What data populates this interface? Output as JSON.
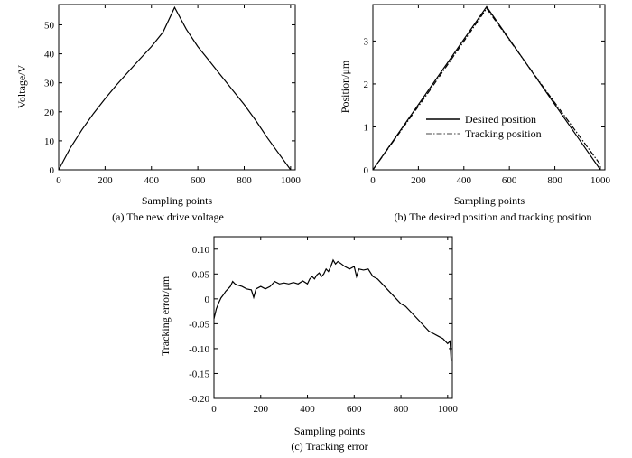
{
  "figure": {
    "panels": [
      {
        "caption": "(a) The new drive voltage"
      },
      {
        "caption": "(b) The desired position and tracking position"
      },
      {
        "caption": "(c) Tracking error"
      }
    ]
  },
  "chart_data": [
    {
      "type": "line",
      "xlabel": "Sampling points",
      "ylabel": "Voltage/V",
      "xlim": [
        0,
        1020
      ],
      "ylim": [
        0,
        57
      ],
      "xticks": [
        0,
        200,
        400,
        600,
        800,
        1000
      ],
      "yticks": [
        0,
        10,
        20,
        30,
        40,
        50
      ],
      "grid": false,
      "series": [
        {
          "style": "solid",
          "x": [
            0,
            50,
            100,
            150,
            200,
            250,
            300,
            350,
            400,
            450,
            500,
            550,
            600,
            650,
            700,
            750,
            800,
            850,
            900,
            950,
            1000
          ],
          "y": [
            0,
            7.5,
            13.8,
            19.4,
            24.5,
            29.3,
            33.8,
            38.2,
            42.5,
            47.5,
            56,
            48.5,
            42.5,
            37.5,
            32.5,
            27.5,
            22.5,
            17,
            11,
            5.5,
            0
          ]
        }
      ]
    },
    {
      "type": "line",
      "xlabel": "Sampling points",
      "ylabel": "Position/μm",
      "xlim": [
        0,
        1020
      ],
      "ylim": [
        0,
        3.85
      ],
      "xticks": [
        0,
        200,
        400,
        600,
        800,
        1000
      ],
      "yticks": [
        0,
        1,
        2,
        3
      ],
      "grid": false,
      "legend_position": "center-right",
      "series": [
        {
          "name": "Desired position",
          "style": "solid",
          "x": [
            0,
            500,
            1000
          ],
          "y": [
            0,
            3.8,
            0
          ]
        },
        {
          "name": "Tracking position",
          "style": "dashdot",
          "x": [
            0,
            250,
            500,
            750,
            1000
          ],
          "y": [
            0,
            1.85,
            3.76,
            1.92,
            0.12
          ]
        }
      ]
    },
    {
      "type": "line",
      "xlabel": "Sampling points",
      "ylabel": "Tracking error/μm",
      "xlim": [
        0,
        1020
      ],
      "ylim": [
        -0.2,
        0.125
      ],
      "xticks": [
        0,
        200,
        400,
        600,
        800,
        1000
      ],
      "yticks": [
        -0.2,
        -0.15,
        -0.1,
        -0.05,
        0,
        0.05,
        0.1
      ],
      "ytick_labels": [
        "-0.20",
        "-0.15",
        "-0.10",
        "-0.05",
        "0",
        "0.05",
        "0.10"
      ],
      "grid": false,
      "series": [
        {
          "style": "solid",
          "x": [
            0,
            10,
            20,
            30,
            40,
            50,
            60,
            70,
            80,
            90,
            100,
            120,
            140,
            160,
            170,
            180,
            200,
            220,
            240,
            260,
            280,
            300,
            320,
            340,
            360,
            380,
            400,
            410,
            420,
            430,
            440,
            450,
            460,
            470,
            480,
            490,
            500,
            510,
            520,
            530,
            540,
            560,
            580,
            600,
            610,
            620,
            640,
            660,
            680,
            700,
            720,
            740,
            760,
            780,
            800,
            820,
            840,
            860,
            880,
            900,
            920,
            940,
            960,
            980,
            990,
            1000,
            1010,
            1015
          ],
          "y": [
            -0.04,
            -0.02,
            -0.008,
            0.002,
            0.008,
            0.015,
            0.02,
            0.025,
            0.035,
            0.03,
            0.028,
            0.025,
            0.02,
            0.018,
            0.003,
            0.02,
            0.025,
            0.02,
            0.025,
            0.035,
            0.03,
            0.032,
            0.03,
            0.033,
            0.03,
            0.036,
            0.03,
            0.04,
            0.045,
            0.04,
            0.048,
            0.052,
            0.045,
            0.05,
            0.06,
            0.055,
            0.065,
            0.078,
            0.07,
            0.075,
            0.072,
            0.065,
            0.06,
            0.065,
            0.045,
            0.06,
            0.058,
            0.06,
            0.045,
            0.04,
            0.03,
            0.02,
            0.01,
            0.0,
            -0.01,
            -0.015,
            -0.025,
            -0.035,
            -0.045,
            -0.055,
            -0.065,
            -0.07,
            -0.075,
            -0.08,
            -0.085,
            -0.09,
            -0.085,
            -0.125
          ]
        }
      ]
    }
  ]
}
